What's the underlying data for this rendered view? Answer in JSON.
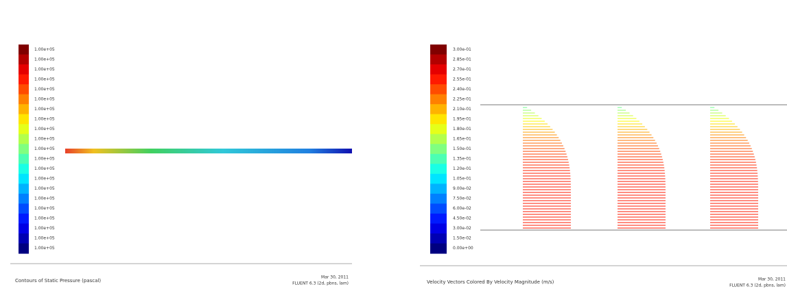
{
  "left": {
    "colorbar_labels": [
      "1.00e+05",
      "1.00e+05",
      "1.00e+05",
      "1.00e+05",
      "1.00e+05",
      "1.00e+05",
      "1.00e+05",
      "1.00e+05",
      "1.00e+05",
      "1.00e+05",
      "1.00e+05",
      "1.00e+05",
      "1.00e+05",
      "1.00e+05",
      "1.00e+05",
      "1.00e+05",
      "1.00e+05",
      "1.00e+05",
      "1.00e+05",
      "1.00e+05",
      "1.00e+05"
    ],
    "caption": "Contours of Static Pressure (pascal)",
    "stamp_date": "Mar 30, 2011",
    "stamp_version": "FLUENT 6.3 (2d, pbns, lam)"
  },
  "right": {
    "colorbar_labels": [
      "3.00e-01",
      "2.85e-01",
      "2.70e-01",
      "2.55e-01",
      "2.40e-01",
      "2.25e-01",
      "2.10e-01",
      "1.95e-01",
      "1.80e-01",
      "1.65e-01",
      "1.50e-01",
      "1.35e-01",
      "1.20e-01",
      "1.05e-01",
      "9.00e-02",
      "7.50e-02",
      "6.00e-02",
      "4.50e-02",
      "3.00e-02",
      "1.50e-02",
      "0.00e+00"
    ],
    "caption": "Velocity Vectors Colored By Velocity Magnitude (m/s)",
    "stamp_date": "Mar 30, 2011",
    "stamp_version": "FLUENT 6.3 (2d, pbns, lam)"
  }
}
